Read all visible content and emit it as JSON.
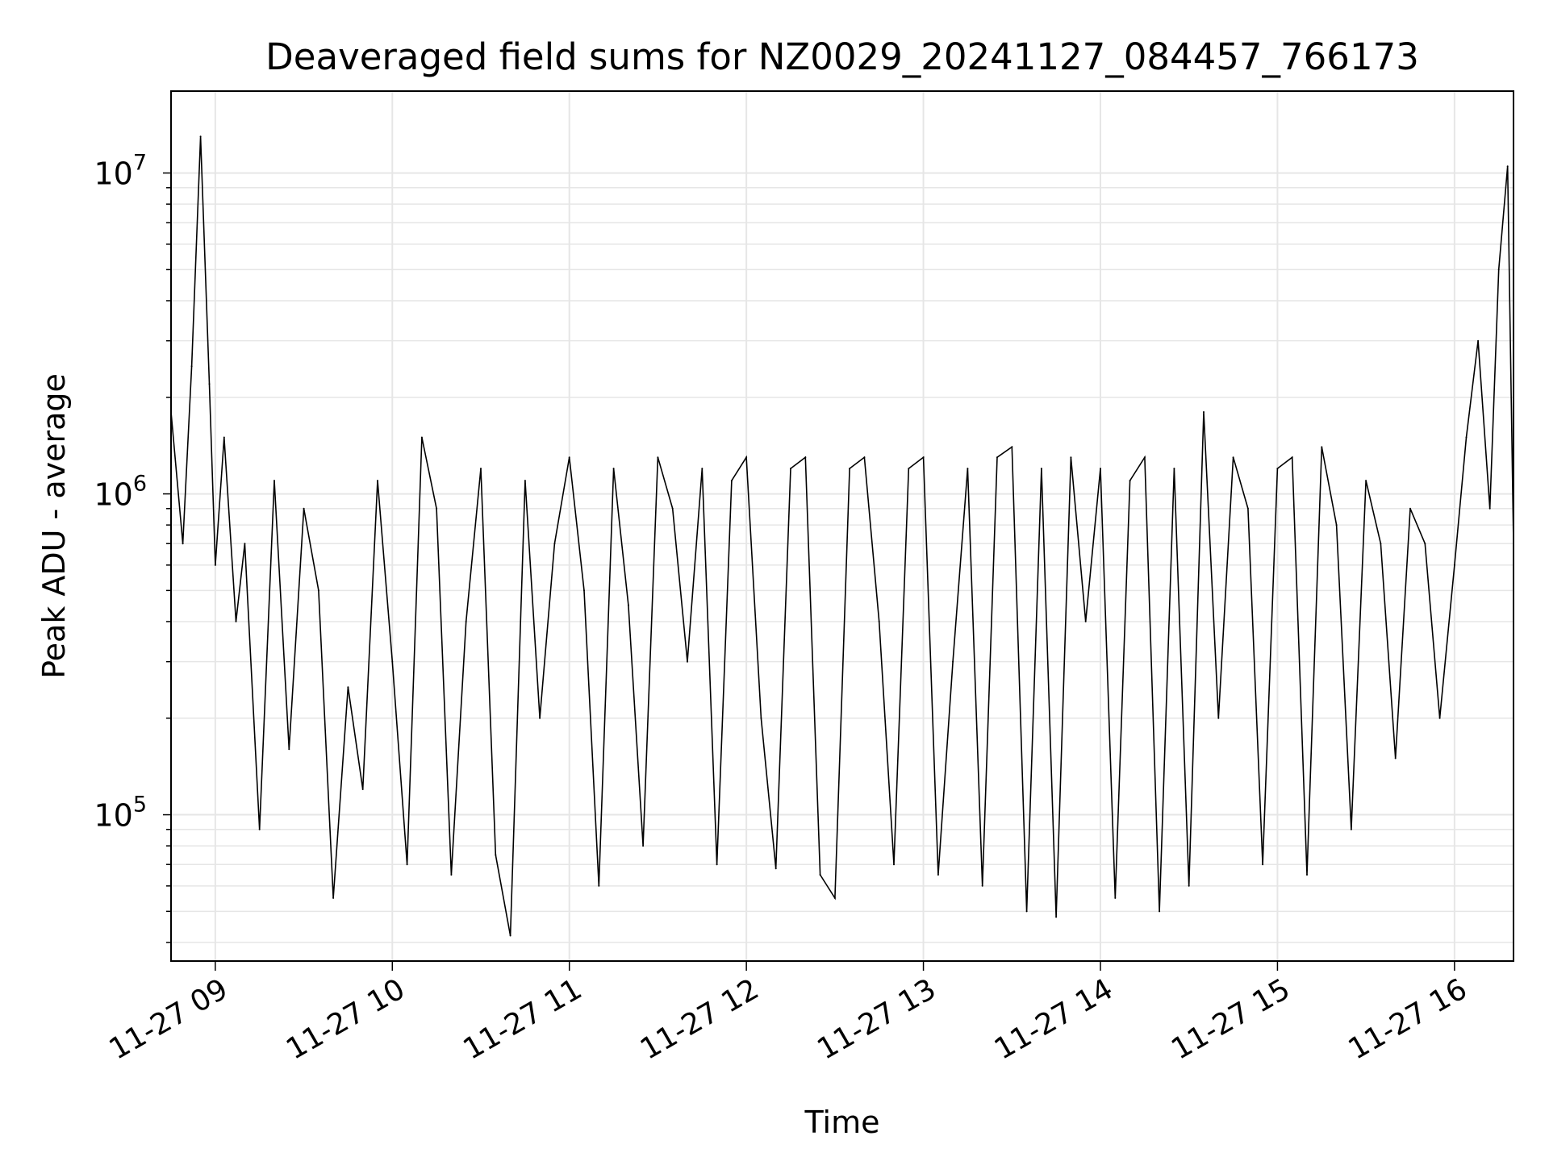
{
  "chart_data": {
    "type": "line",
    "title": "Deaveraged field sums for NZ0029_20241127_084457_766173",
    "xlabel": "Time",
    "ylabel": "Peak ADU - average",
    "yscale": "log",
    "ylim": [
      35000,
      18000000
    ],
    "xlim": [
      "2024-11-27 08:45",
      "2024-11-27 16:20"
    ],
    "grid": true,
    "line_color": "#000000",
    "grid_color": "#e6e6e6",
    "x_ticks": [
      {
        "label": "11-27 09",
        "value": "2024-11-27 09:00"
      },
      {
        "label": "11-27 10",
        "value": "2024-11-27 10:00"
      },
      {
        "label": "11-27 11",
        "value": "2024-11-27 11:00"
      },
      {
        "label": "11-27 12",
        "value": "2024-11-27 12:00"
      },
      {
        "label": "11-27 13",
        "value": "2024-11-27 13:00"
      },
      {
        "label": "11-27 14",
        "value": "2024-11-27 14:00"
      },
      {
        "label": "11-27 15",
        "value": "2024-11-27 15:00"
      },
      {
        "label": "11-27 16",
        "value": "2024-11-27 16:00"
      }
    ],
    "y_ticks": [
      {
        "base": "10",
        "exp": "5",
        "value": 100000
      },
      {
        "base": "10",
        "exp": "6",
        "value": 1000000
      },
      {
        "base": "10",
        "exp": "7",
        "value": 10000000
      }
    ],
    "series": [
      {
        "x": [
          "2024-11-27 08:45",
          "2024-11-27 08:49",
          "2024-11-27 08:52",
          "2024-11-27 08:55",
          "2024-11-27 08:58",
          "2024-11-27 09:00",
          "2024-11-27 09:03",
          "2024-11-27 09:07",
          "2024-11-27 09:10",
          "2024-11-27 09:15",
          "2024-11-27 09:20",
          "2024-11-27 09:25",
          "2024-11-27 09:30",
          "2024-11-27 09:35",
          "2024-11-27 09:40",
          "2024-11-27 09:45",
          "2024-11-27 09:50",
          "2024-11-27 09:55",
          "2024-11-27 10:00",
          "2024-11-27 10:05",
          "2024-11-27 10:10",
          "2024-11-27 10:15",
          "2024-11-27 10:20",
          "2024-11-27 10:25",
          "2024-11-27 10:30",
          "2024-11-27 10:35",
          "2024-11-27 10:40",
          "2024-11-27 10:45",
          "2024-11-27 10:50",
          "2024-11-27 10:55",
          "2024-11-27 11:00",
          "2024-11-27 11:05",
          "2024-11-27 11:10",
          "2024-11-27 11:15",
          "2024-11-27 11:20",
          "2024-11-27 11:25",
          "2024-11-27 11:30",
          "2024-11-27 11:35",
          "2024-11-27 11:40",
          "2024-11-27 11:45",
          "2024-11-27 11:50",
          "2024-11-27 11:55",
          "2024-11-27 12:00",
          "2024-11-27 12:05",
          "2024-11-27 12:10",
          "2024-11-27 12:15",
          "2024-11-27 12:20",
          "2024-11-27 12:25",
          "2024-11-27 12:30",
          "2024-11-27 12:35",
          "2024-11-27 12:40",
          "2024-11-27 12:45",
          "2024-11-27 12:50",
          "2024-11-27 12:55",
          "2024-11-27 13:00",
          "2024-11-27 13:05",
          "2024-11-27 13:10",
          "2024-11-27 13:15",
          "2024-11-27 13:20",
          "2024-11-27 13:25",
          "2024-11-27 13:30",
          "2024-11-27 13:35",
          "2024-11-27 13:40",
          "2024-11-27 13:45",
          "2024-11-27 13:50",
          "2024-11-27 13:55",
          "2024-11-27 14:00",
          "2024-11-27 14:05",
          "2024-11-27 14:10",
          "2024-11-27 14:15",
          "2024-11-27 14:20",
          "2024-11-27 14:25",
          "2024-11-27 14:30",
          "2024-11-27 14:35",
          "2024-11-27 14:40",
          "2024-11-27 14:45",
          "2024-11-27 14:50",
          "2024-11-27 14:55",
          "2024-11-27 15:00",
          "2024-11-27 15:05",
          "2024-11-27 15:10",
          "2024-11-27 15:15",
          "2024-11-27 15:20",
          "2024-11-27 15:25",
          "2024-11-27 15:30",
          "2024-11-27 15:35",
          "2024-11-27 15:40",
          "2024-11-27 15:45",
          "2024-11-27 15:50",
          "2024-11-27 15:55",
          "2024-11-27 16:00",
          "2024-11-27 16:04",
          "2024-11-27 16:08",
          "2024-11-27 16:12",
          "2024-11-27 16:15",
          "2024-11-27 16:18",
          "2024-11-27 16:20"
        ],
        "y": [
          1800000,
          700000,
          2500000,
          13000000,
          2200000,
          600000,
          1500000,
          400000,
          700000,
          90000,
          1100000,
          160000,
          900000,
          500000,
          55000,
          250000,
          120000,
          1100000,
          300000,
          70000,
          1500000,
          900000,
          65000,
          400000,
          1200000,
          75000,
          42000,
          1100000,
          200000,
          700000,
          1300000,
          500000,
          60000,
          1200000,
          450000,
          80000,
          1300000,
          900000,
          300000,
          1200000,
          70000,
          1100000,
          1300000,
          200000,
          68000,
          1200000,
          1300000,
          65000,
          55000,
          1200000,
          1300000,
          400000,
          70000,
          1200000,
          1300000,
          65000,
          300000,
          1200000,
          60000,
          1300000,
          1400000,
          50000,
          1200000,
          48000,
          1300000,
          400000,
          1200000,
          55000,
          1100000,
          1300000,
          50000,
          1200000,
          60000,
          1800000,
          200000,
          1300000,
          900000,
          70000,
          1200000,
          1300000,
          65000,
          1400000,
          800000,
          90000,
          1100000,
          700000,
          150000,
          900000,
          700000,
          200000,
          600000,
          1500000,
          3000000,
          900000,
          5000000,
          10500000,
          700000
        ]
      }
    ]
  }
}
